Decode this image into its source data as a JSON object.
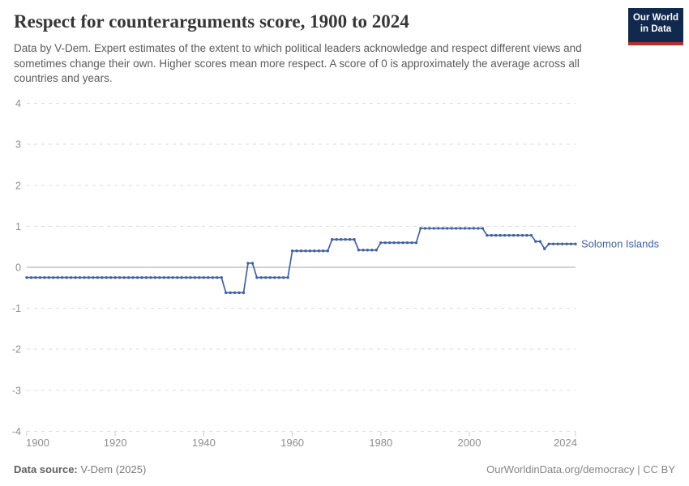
{
  "header": {
    "title": "Respect for counterarguments score, 1900 to 2024",
    "subtitle": "Data by V-Dem. Expert estimates of the extent to which political leaders acknowledge and respect different views and sometimes change their own. Higher scores mean more respect. A score of 0 is approximately the average across all countries and years.",
    "logo": {
      "line1": "Our World",
      "line2": "in Data",
      "bg_color": "#12294e",
      "accent_color": "#b0312f"
    }
  },
  "chart_data": {
    "type": "line",
    "title": "Respect for counterarguments score, 1900 to 2024",
    "xlabel": "",
    "ylabel": "",
    "x_range": [
      1900,
      2024
    ],
    "ylim": [
      -4,
      4
    ],
    "x_ticks": [
      1900,
      1920,
      1940,
      1960,
      1980,
      2000,
      2024
    ],
    "y_ticks": [
      4,
      3,
      2,
      1,
      0,
      -1,
      -2,
      -3,
      -4
    ],
    "grid": "horizontal-dashed",
    "zero_line": true,
    "legend_position": "end-of-line-label",
    "colors": {
      "line": "#4262a5",
      "gridline": "#dcdcdc",
      "zero_line": "#a3a3a3",
      "axis_text": "#8e8e8e",
      "tick_mark": "#c8c8c8"
    },
    "series": [
      {
        "name": "Solomon Islands",
        "color": "#4262a5",
        "marker_every_year": true,
        "step_segments": [
          {
            "from": 1900,
            "to": 1944,
            "value": -0.25
          },
          {
            "from": 1945,
            "to": 1949,
            "value": -0.62
          },
          {
            "from": 1950,
            "to": 1951,
            "value": 0.1
          },
          {
            "from": 1952,
            "to": 1959,
            "value": -0.25
          },
          {
            "from": 1960,
            "to": 1968,
            "value": 0.4
          },
          {
            "from": 1969,
            "to": 1974,
            "value": 0.68
          },
          {
            "from": 1975,
            "to": 1979,
            "value": 0.42
          },
          {
            "from": 1980,
            "to": 1988,
            "value": 0.6
          },
          {
            "from": 1989,
            "to": 2003,
            "value": 0.95
          },
          {
            "from": 2004,
            "to": 2014,
            "value": 0.78
          },
          {
            "from": 2015,
            "to": 2016,
            "value": 0.63
          },
          {
            "from": 2017,
            "to": 2017,
            "value": 0.45
          },
          {
            "from": 2018,
            "to": 2024,
            "value": 0.57
          }
        ]
      }
    ],
    "entity_label": "Solomon Islands"
  },
  "footer": {
    "source_label": "Data source:",
    "source_value": " V-Dem (2025)",
    "credit": "OurWorldinData.org/democracy | CC BY"
  }
}
